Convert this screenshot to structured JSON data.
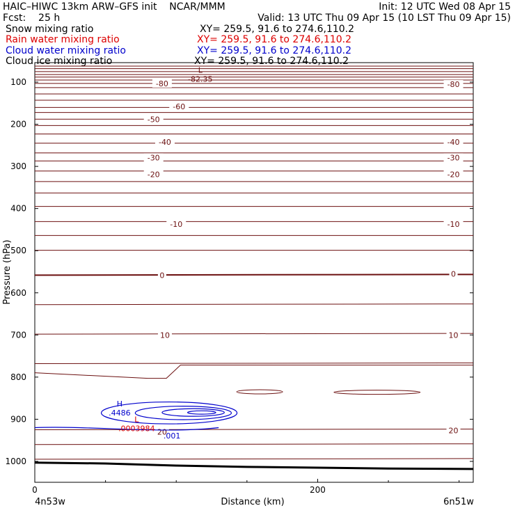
{
  "header": {
    "line1_left": "HAIC–HIWC 13km ARW–GFS init    NCAR/MMM",
    "line1_right": "Init: 12 UTC Wed 08 Apr 15",
    "line2_left": "Fcst:    25 h",
    "line2_right": "Valid: 13 UTC Thu 09 Apr 15 (10 LST Thu 09 Apr 15)",
    "fields": [
      {
        "name": "Snow mixing ratio",
        "xy": "XY= 259.5, 91.6 to 274.6,110.2",
        "color": "#000000"
      },
      {
        "name": "Rain water mixing ratio",
        "xy": "XY= 259.5, 91.6 to 274.6,110.2",
        "color": "#dd0000"
      },
      {
        "name": "Cloud water mixing ratio",
        "xy": "XY= 259.5, 91.6 to 274.6,110.2",
        "color": "#0000cc"
      },
      {
        "name": "Cloud ice mixing ratio",
        "xy": "XY= 259.5, 91.6 to 274.6,110.2",
        "color": "#000000"
      }
    ]
  },
  "chart_data": {
    "type": "contour",
    "ylabel": "Pressure (hPa)",
    "xlabel": "Distance (km)",
    "x_ticks": [
      0,
      200
    ],
    "y_ticks": [
      100,
      200,
      300,
      400,
      500,
      600,
      700,
      800,
      900,
      1000
    ],
    "xlim": [
      0,
      310
    ],
    "ylim": [
      1035,
      55
    ],
    "x_end_labels": {
      "left": "4n53w",
      "right": "6n51w"
    },
    "colors": {
      "temperature": "#6b0f0f",
      "cloud_water": "#0000cc",
      "rain": "#dd0000",
      "terrain": "#000000"
    },
    "isotherms": [
      {
        "p": 62
      },
      {
        "p": 68
      },
      {
        "p": 75
      },
      {
        "p": 82
      },
      {
        "p": 88
      },
      {
        "p": 95
      },
      {
        "p": 103,
        "label": "-80"
      },
      {
        "p": 113
      },
      {
        "p": 128
      },
      {
        "p": 143
      },
      {
        "p": 160,
        "label": "-60"
      },
      {
        "p": 172
      },
      {
        "p": 188,
        "label": "-50"
      },
      {
        "p": 203
      },
      {
        "p": 223
      },
      {
        "p": 245,
        "label": "-40"
      },
      {
        "p": 268
      },
      {
        "p": 287,
        "label": "-30"
      },
      {
        "p": 311
      },
      {
        "p": 336,
        "label": "-20"
      },
      {
        "p": 363
      },
      {
        "p": 395
      },
      {
        "p": 431
      },
      {
        "p": 464,
        "label": "-10"
      },
      {
        "p": 499
      },
      {
        "p": 558,
        "label": "0",
        "bold": true
      },
      {
        "p": 628
      },
      {
        "p": 698,
        "label": "10"
      },
      {
        "p": 768
      },
      {
        "p": 793
      },
      {
        "p": 925,
        "label": "20"
      },
      {
        "p": 960
      },
      {
        "p": 995
      }
    ],
    "temperature_labels": [
      {
        "x": 90,
        "p": 103,
        "text": "-80"
      },
      {
        "x": 296,
        "p": 105,
        "text": "-80"
      },
      {
        "x": 102,
        "p": 158,
        "text": "-60"
      },
      {
        "x": 84,
        "p": 188,
        "text": "-50"
      },
      {
        "x": 92,
        "p": 242,
        "text": "-40"
      },
      {
        "x": 296,
        "p": 242,
        "text": "-40"
      },
      {
        "x": 84,
        "p": 279,
        "text": "-30"
      },
      {
        "x": 296,
        "p": 279,
        "text": "-30"
      },
      {
        "x": 84,
        "p": 319,
        "text": "-20"
      },
      {
        "x": 296,
        "p": 319,
        "text": "-20"
      },
      {
        "x": 100,
        "p": 437,
        "text": "-10"
      },
      {
        "x": 296,
        "p": 437,
        "text": "-10"
      },
      {
        "x": 90,
        "p": 558,
        "text": "0"
      },
      {
        "x": 296,
        "p": 555,
        "text": "0"
      },
      {
        "x": 92,
        "p": 700,
        "text": "10"
      },
      {
        "x": 296,
        "p": 700,
        "text": "10"
      },
      {
        "x": 90,
        "p": 930,
        "text": "20"
      },
      {
        "x": 296,
        "p": 927,
        "text": "20"
      }
    ],
    "extrema": [
      {
        "type": "L",
        "x": 117,
        "p": 78,
        "value": "-82.35",
        "color": "#6b0f0f"
      },
      {
        "type": "H",
        "x": 60,
        "p": 870,
        "value": ".4486",
        "color": "#0000cc"
      },
      {
        "type": "L",
        "x": 72,
        "p": 907,
        "value": ".0003984",
        "color": "#dd0000"
      },
      {
        "type": "",
        "x": 97,
        "p": 924,
        "value": ".001",
        "color": "#0000cc"
      }
    ],
    "terrain": [
      [
        0,
        1003
      ],
      [
        50,
        1005
      ],
      [
        100,
        1010
      ],
      [
        150,
        1013
      ],
      [
        200,
        1015
      ],
      [
        250,
        1017
      ],
      [
        310,
        1018
      ]
    ]
  }
}
